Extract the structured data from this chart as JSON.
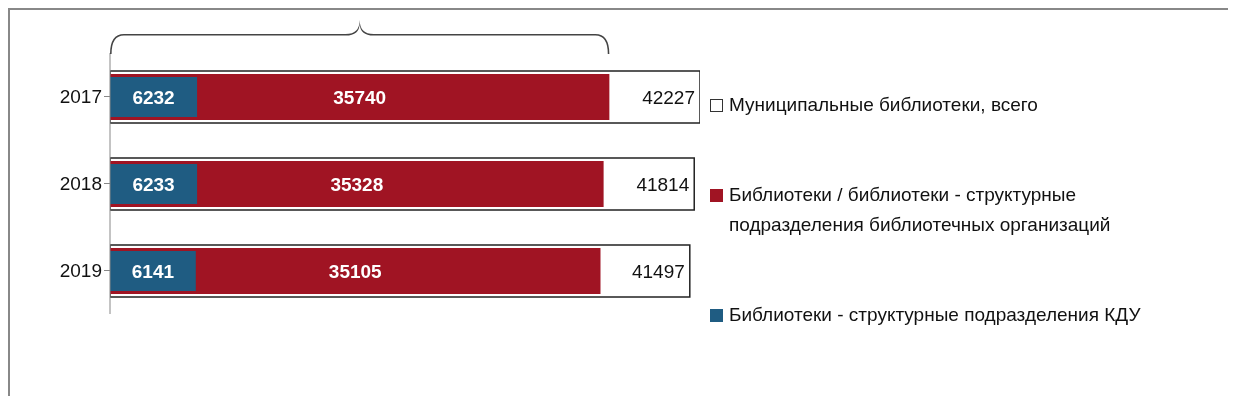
{
  "chart_data": {
    "type": "bar",
    "orientation": "horizontal",
    "categories": [
      "2017",
      "2018",
      "2019"
    ],
    "series": [
      {
        "name": "Муниципальные библиотеки, всего",
        "color": "#ffffff",
        "values": [
          42227,
          41814,
          41497
        ]
      },
      {
        "name": "Библиотеки / библиотеки - структурные подразделения  библиотечных организаций",
        "color": "#a01423",
        "values": [
          35740,
          35328,
          35105
        ]
      },
      {
        "name": "Библиотеки - структурные подразделения КДУ",
        "color": "#1f5c82",
        "values": [
          6232,
          6233,
          6141
        ]
      }
    ],
    "data_labels": true,
    "legend": "right",
    "tick_labels": "y"
  }
}
